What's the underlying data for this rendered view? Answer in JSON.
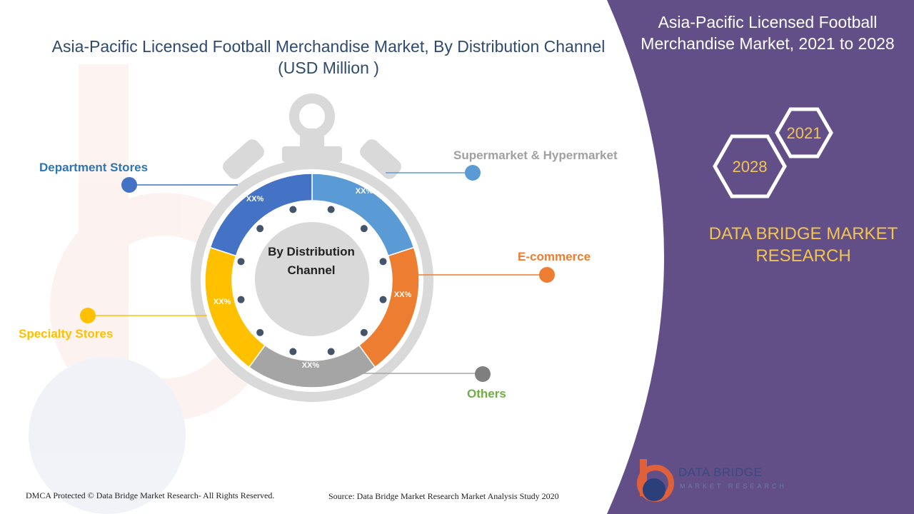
{
  "header": {
    "title_line1": "Asia-Pacific Licensed Football Merchandise Market, By Distribution Channel",
    "title_line2": "(USD Million )"
  },
  "side_panel": {
    "title_line1": "Asia-Pacific Licensed Football",
    "title_line2": "Merchandise Market, 2021 to 2028",
    "hex_start_year": "2021",
    "hex_end_year": "2028",
    "brand_line1": "DATA BRIDGE MARKET",
    "brand_line2": "RESEARCH",
    "panel_color": "#634f87",
    "brand_color": "#f2c451"
  },
  "chart_data": {
    "type": "pie",
    "center_label_line1": "By Distribution",
    "center_label_line2": "Channel",
    "segments": [
      {
        "name": "Supermarket  &  Hypermarket",
        "value_label": "XX%",
        "color": "#5b9bd5",
        "share": 0.2
      },
      {
        "name": "E-commerce",
        "value_label": "XX%",
        "color": "#ed7d31",
        "share": 0.2
      },
      {
        "name": "Others",
        "value_label": "XX%",
        "color": "#a5a5a5",
        "share": 0.2
      },
      {
        "name": "Specialty Stores",
        "value_label": "XX%",
        "color": "#ffc000",
        "share": 0.2
      },
      {
        "name": "Department Stores",
        "value_label": "XX%",
        "color": "#4472c4",
        "share": 0.2
      }
    ],
    "legend_label_colors": {
      "Supermarket  &  Hypermarket": "#a0a0a0",
      "E-commerce": "#ed7d31",
      "Others": "#70ad47",
      "Specialty Stores": "#ffc000",
      "Department Stores": "#2e75b6"
    }
  },
  "footer": {
    "copyright": "DMCA Protected © Data Bridge Market Research- All Rights Reserved.",
    "source": "Source: Data Bridge Market Research Market Analysis Study 2020"
  },
  "logo": {
    "name": "DATA BRIDGE",
    "subtitle": "MARKET RESEARCH",
    "icon": "data-bridge-logo-icon"
  }
}
